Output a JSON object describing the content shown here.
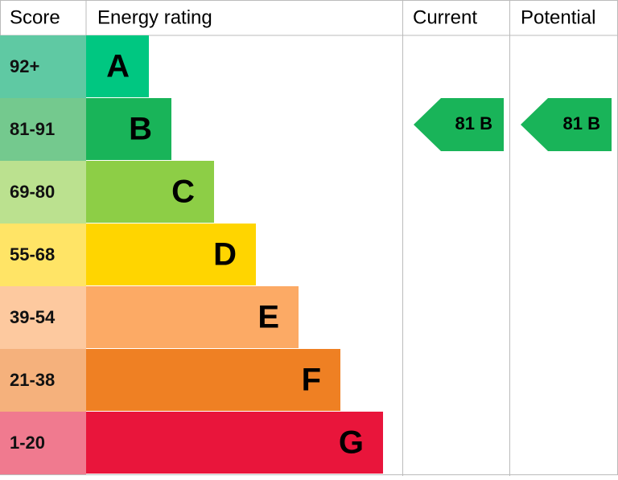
{
  "header": {
    "score": "Score",
    "energy_rating": "Energy rating",
    "current": "Current",
    "potential": "Potential"
  },
  "ratings": [
    {
      "score": "92+",
      "letter": "A"
    },
    {
      "score": "81-91",
      "letter": "B"
    },
    {
      "score": "69-80",
      "letter": "C"
    },
    {
      "score": "55-68",
      "letter": "D"
    },
    {
      "score": "39-54",
      "letter": "E"
    },
    {
      "score": "21-38",
      "letter": "F"
    },
    {
      "score": "1-20",
      "letter": "G"
    }
  ],
  "current": "81 B",
  "potential": "81 B"
}
